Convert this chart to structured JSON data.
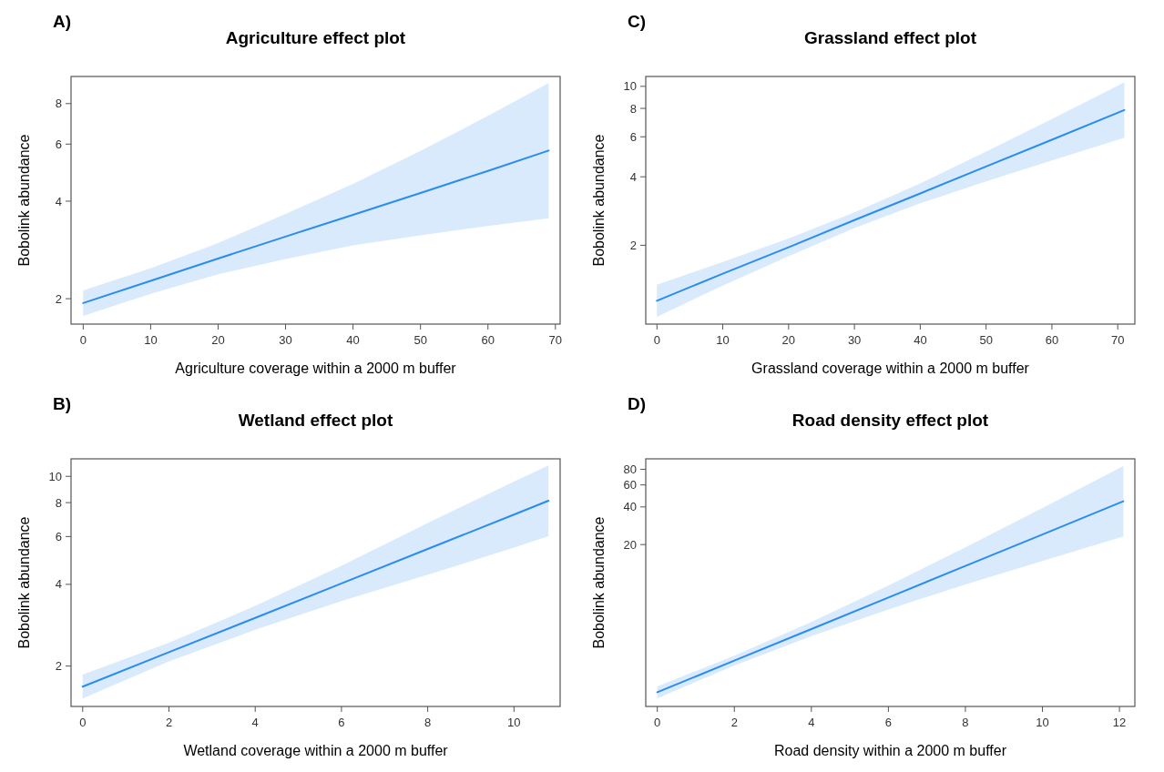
{
  "chart_data": [
    {
      "type": "line",
      "title": "Agriculture effect plot",
      "annotations": [
        "A)"
      ],
      "xlabel": "Agriculture coverage within a 2000 m buffer",
      "ylabel": "Bobolink abundance",
      "log": "y",
      "grid": false,
      "marker": "none",
      "line_style": "solid",
      "xlim": [
        -1.8,
        70.7
      ],
      "xticks": [
        0,
        10,
        20,
        30,
        40,
        50,
        60,
        70
      ],
      "ylim": [
        1.67,
        9.7
      ],
      "yticks": [
        2,
        4,
        6,
        8
      ],
      "series": [
        {
          "color": "#2b8cf0",
          "x": [
            0,
            10,
            20,
            30,
            40,
            50,
            60,
            69
          ],
          "values": [
            1.94,
            2.27,
            2.66,
            3.11,
            3.63,
            4.24,
            4.96,
            5.73
          ],
          "lower": [
            1.77,
            2.07,
            2.38,
            2.65,
            2.92,
            3.14,
            3.35,
            3.54
          ],
          "upper": [
            2.12,
            2.48,
            2.97,
            3.65,
            4.52,
            5.72,
            7.33,
            9.26
          ]
        }
      ]
    },
    {
      "type": "line",
      "title": "Grassland effect plot",
      "annotations": [
        "C)"
      ],
      "xlabel": "Grassland coverage within a 2000 m buffer",
      "ylabel": "Bobolink abundance",
      "log": "y",
      "grid": false,
      "marker": "none",
      "line_style": "solid",
      "xlim": [
        -1.7,
        72.6
      ],
      "xticks": [
        0,
        10,
        20,
        30,
        40,
        50,
        60,
        70
      ],
      "ylim": [
        0.9,
        11.05
      ],
      "yticks": [
        2,
        4,
        6,
        8,
        10
      ],
      "series": [
        {
          "color": "#2b8cf0",
          "x": [
            0,
            10,
            20,
            30,
            40,
            50,
            60,
            71
          ],
          "values": [
            1.14,
            1.5,
            1.96,
            2.58,
            3.38,
            4.44,
            5.82,
            7.86
          ],
          "lower": [
            0.97,
            1.33,
            1.79,
            2.38,
            3.06,
            3.82,
            4.72,
            5.94
          ],
          "upper": [
            1.34,
            1.69,
            2.14,
            2.79,
            3.74,
            5.16,
            7.18,
            10.4
          ]
        }
      ]
    },
    {
      "type": "line",
      "title": "Wetland effect plot",
      "annotations": [
        "B)"
      ],
      "xlabel": "Wetland coverage within a 2000 m buffer",
      "ylabel": "Bobolink abundance",
      "log": "y",
      "grid": false,
      "marker": "none",
      "line_style": "solid",
      "xlim": [
        -0.27,
        11.07
      ],
      "xticks": [
        0,
        2,
        4,
        6,
        8,
        10
      ],
      "ylim": [
        1.42,
        11.6
      ],
      "yticks": [
        2,
        4,
        6,
        8,
        10
      ],
      "series": [
        {
          "color": "#2b8cf0",
          "x": [
            0,
            2,
            4,
            6,
            8,
            10,
            10.8
          ],
          "values": [
            1.68,
            2.25,
            3.01,
            4.03,
            5.4,
            7.23,
            8.13
          ],
          "lower": [
            1.52,
            2.08,
            2.72,
            3.47,
            4.34,
            5.46,
            6.02
          ],
          "upper": [
            1.86,
            2.44,
            3.33,
            4.68,
            6.73,
            9.57,
            10.97
          ]
        }
      ]
    },
    {
      "type": "line",
      "title": "Road density effect plot",
      "annotations": [
        "D)"
      ],
      "xlabel": "Road density within a 2000 m buffer",
      "ylabel": "Bobolink abundance",
      "log": "y",
      "grid": false,
      "marker": "none",
      "line_style": "solid",
      "xlim": [
        -0.3,
        12.4
      ],
      "xticks": [
        0,
        2,
        4,
        6,
        8,
        10,
        12
      ],
      "ylim": [
        1.015,
        97
      ],
      "yticks": [
        20,
        40,
        60,
        80
      ],
      "series": [
        {
          "color": "#2b8cf0",
          "x": [
            0,
            2,
            4,
            6,
            8,
            10,
            12.1
          ],
          "values": [
            1.32,
            2.36,
            4.22,
            7.54,
            13.5,
            24.1,
            44.4
          ],
          "lower": [
            1.18,
            2.16,
            3.71,
            6.05,
            9.61,
            14.8,
            23.2
          ],
          "upper": [
            1.47,
            2.58,
            4.81,
            9.4,
            18.97,
            39.2,
            85
          ]
        }
      ]
    }
  ]
}
